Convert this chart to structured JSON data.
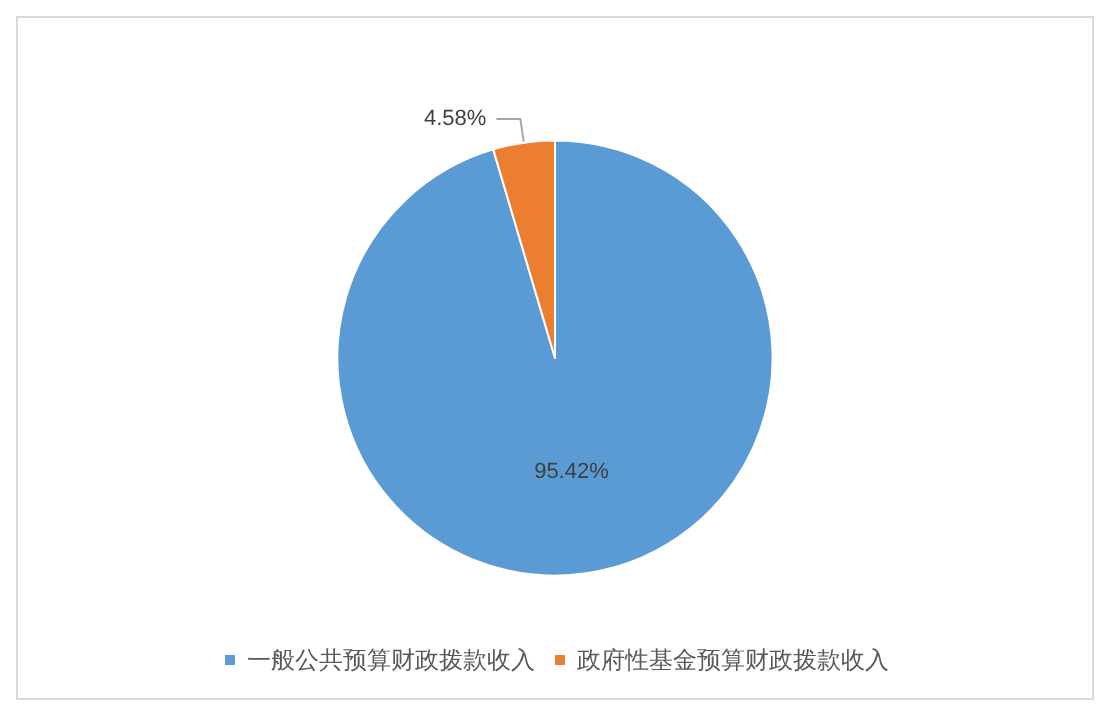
{
  "chart_data": {
    "type": "pie",
    "categories": [
      "一般公共预算财政拨款收入",
      "政府性基金预算财政拨款收入"
    ],
    "values": [
      95.42,
      4.58
    ],
    "colors": [
      "#5b9bd5",
      "#ed7d31"
    ],
    "value_labels": [
      "95.42%",
      "4.58%"
    ],
    "legend": "bottom"
  }
}
